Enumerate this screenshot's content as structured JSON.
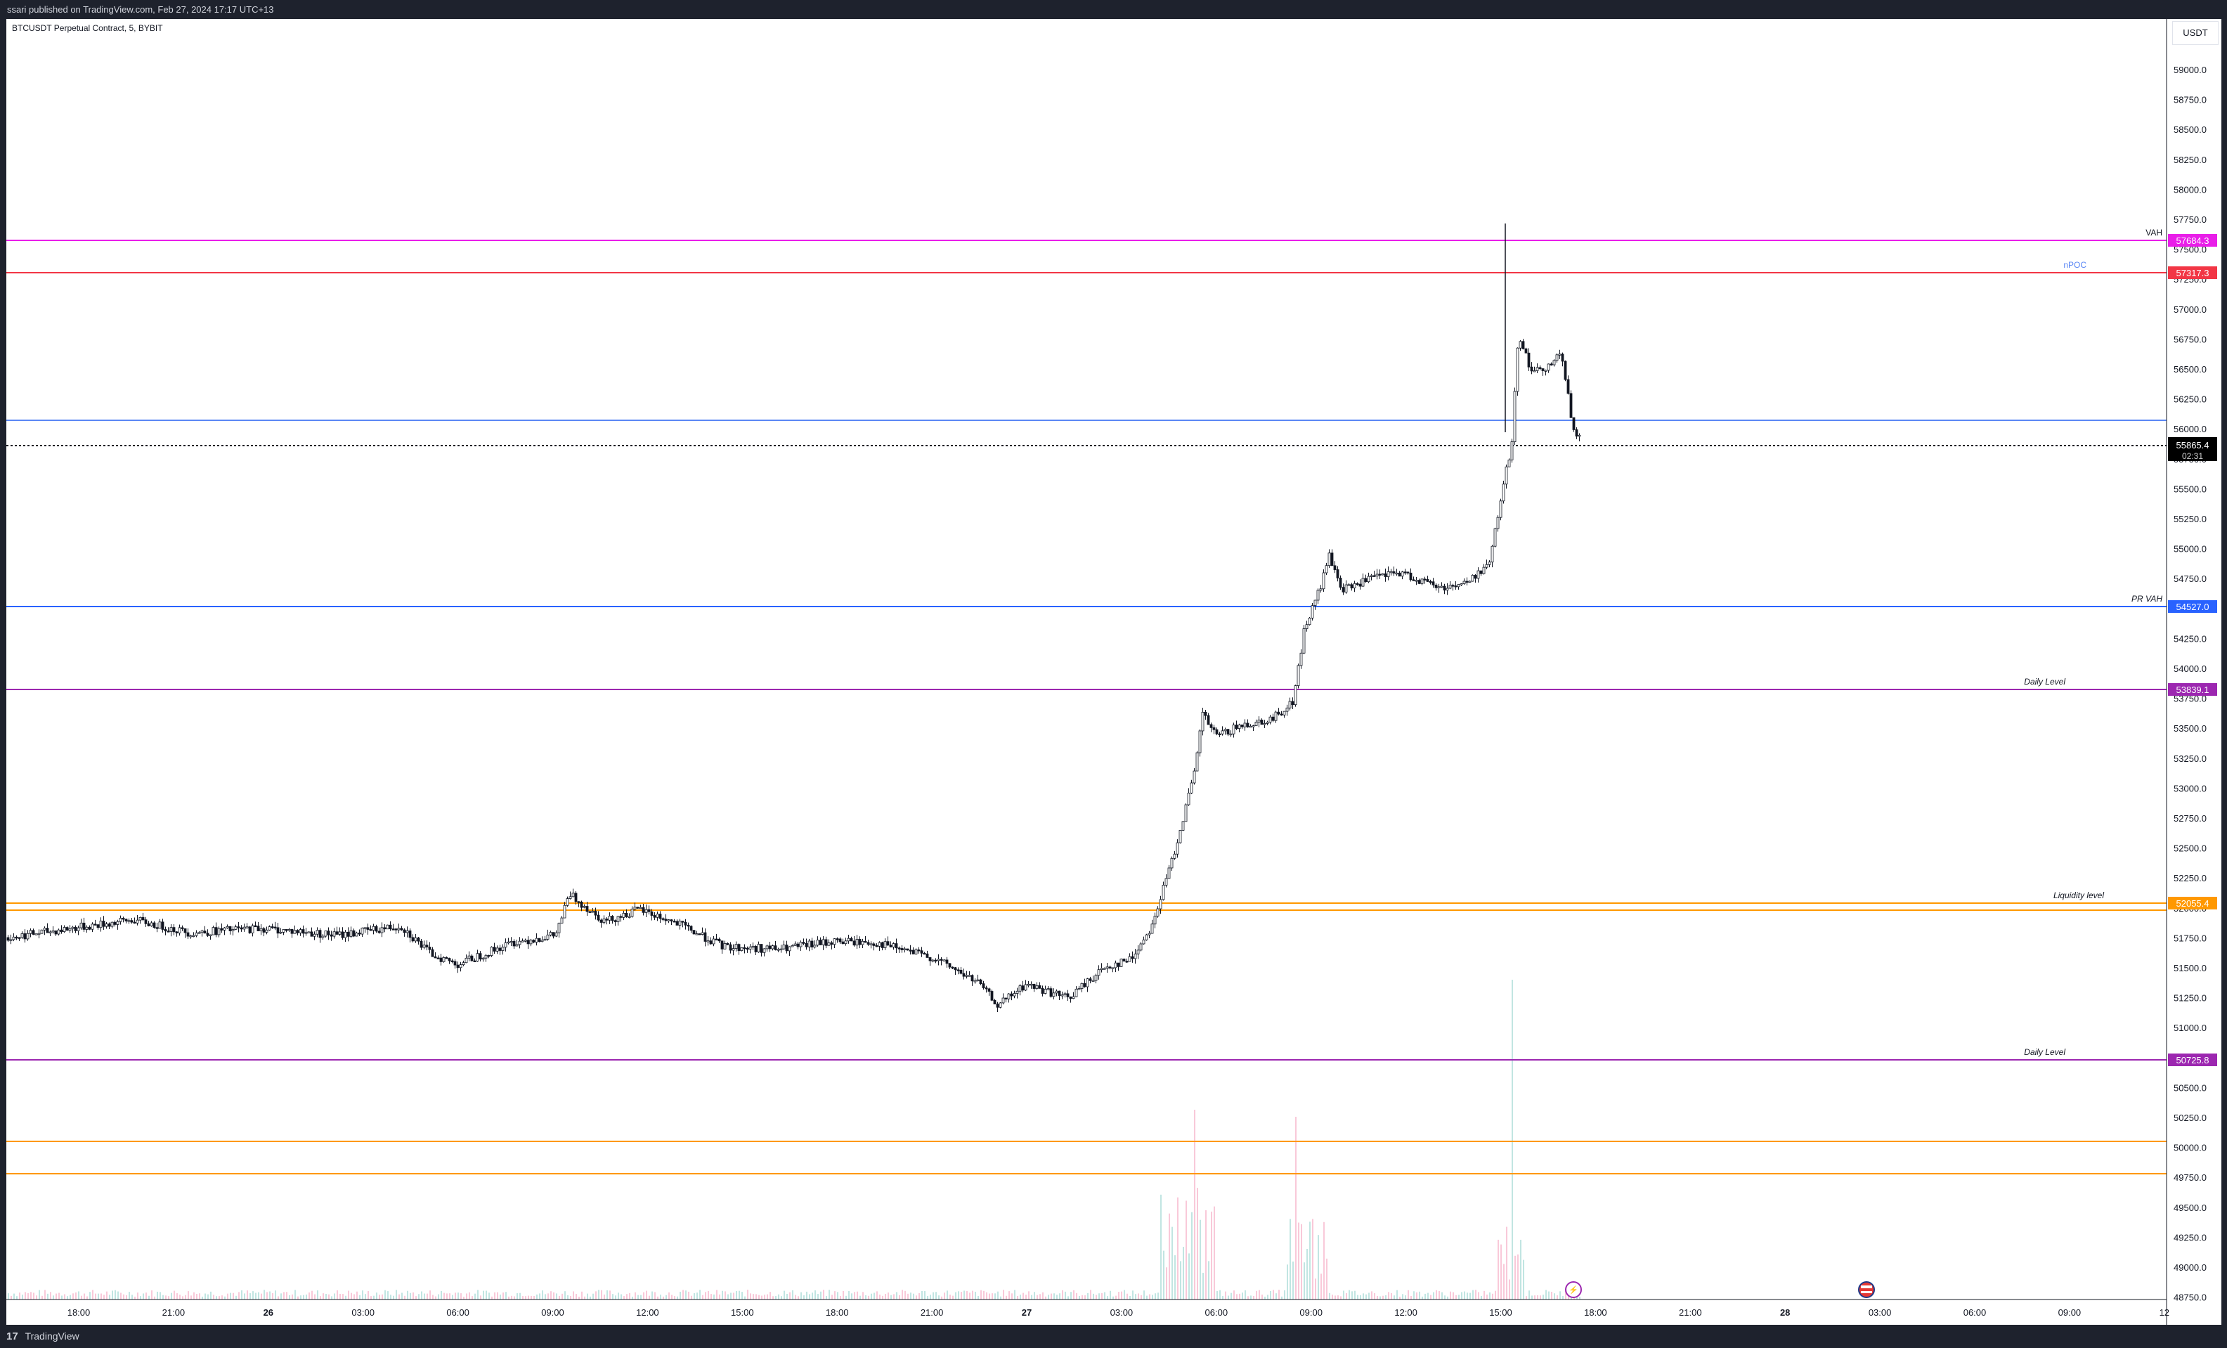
{
  "header": {
    "publisher": "ssari published on TradingView.com, Feb 27, 2024 17:17 UTC+13"
  },
  "chart": {
    "symbol": "BTCUSDT Perpetual Contract, 5, BYBIT",
    "currency_button": "USDT",
    "last_price": "55865.4",
    "countdown": "02:31",
    "time_ticks": [
      "18:00",
      "21:00",
      "26",
      "03:00",
      "06:00",
      "09:00",
      "12:00",
      "15:00",
      "18:00",
      "21:00",
      "27",
      "03:00",
      "06:00",
      "09:00",
      "12:00",
      "15:00",
      "18:00",
      "21:00",
      "28",
      "03:00",
      "06:00",
      "09:00",
      "12"
    ],
    "price_ticks": [
      "59000.0",
      "58750.0",
      "58500.0",
      "58250.0",
      "58000.0",
      "57750.0",
      "57500.0",
      "57250.0",
      "57000.0",
      "56750.0",
      "56500.0",
      "56250.0",
      "56000.0",
      "55750.0",
      "55500.0",
      "55250.0",
      "55000.0",
      "54750.0",
      "54500.0",
      "54250.0",
      "54000.0",
      "53750.0",
      "53500.0",
      "53250.0",
      "53000.0",
      "52750.0",
      "52500.0",
      "52250.0",
      "52000.0",
      "51750.0",
      "51500.0",
      "51250.0",
      "51000.0",
      "50750.0",
      "50500.0",
      "50250.0",
      "50000.0",
      "49750.0",
      "49500.0",
      "49250.0",
      "49000.0",
      "48750.0"
    ],
    "levels": [
      {
        "label": "VAH",
        "price": "57684.3",
        "color": "#e91ee9",
        "italic": false
      },
      {
        "label": "nPOC",
        "price": "57317.3",
        "color": "#f23645",
        "italic": false
      },
      {
        "label": "",
        "price": "",
        "color": "#5b87f5",
        "italic": false
      },
      {
        "label": "PR VAH",
        "price": "54527.0",
        "color": "#2962ff",
        "italic": true
      },
      {
        "label": "Daily Level",
        "price": "53839.1",
        "color": "#9c27b0",
        "italic": true
      },
      {
        "label": "Liquidity level",
        "price": "52055.4",
        "color": "#ff9800",
        "italic": true
      },
      {
        "label": "",
        "price": "",
        "color": "#ff9800",
        "italic": false
      },
      {
        "label": "Daily Level",
        "price": "50725.8",
        "color": "#9c27b0",
        "italic": true
      },
      {
        "label": "",
        "price": "",
        "color": "#ff9800",
        "italic": false
      },
      {
        "label": "",
        "price": "",
        "color": "#ff9800",
        "italic": false
      }
    ],
    "colors": {
      "up": "#ffffff",
      "down": "#131722",
      "wick": "#131722",
      "volume_up": "#b2dfdb",
      "volume_down": "#f8bbd0"
    }
  },
  "footer": {
    "logo": "17",
    "brand": "TradingView"
  }
}
